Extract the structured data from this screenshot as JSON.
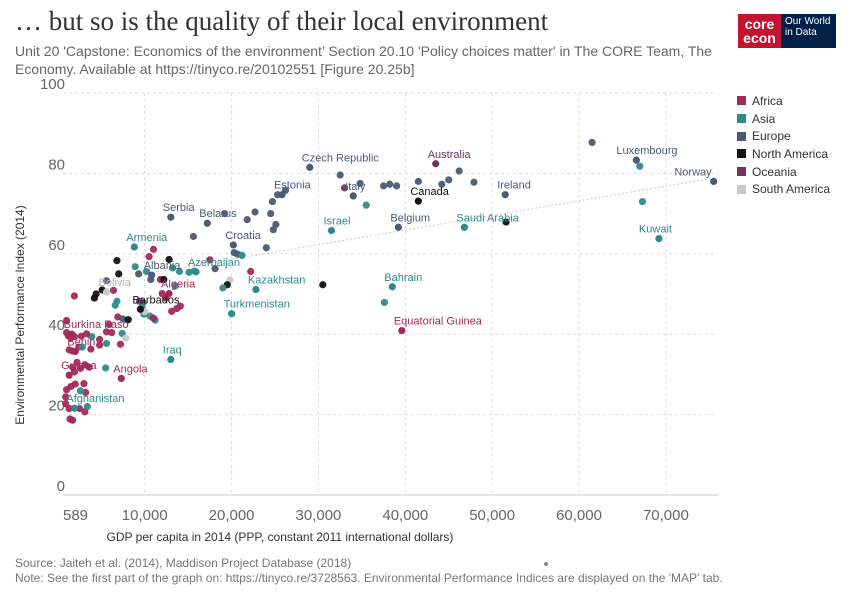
{
  "header": {
    "title": "… but so is the quality of their local environment",
    "subtitle": "Unit 20 'Capstone: Economics of the environment’ Section 20.10 'Policy choices matter' in The CORE Team, The Economy. Available at https://tinyco.re/20102551 [Figure 20.25b]"
  },
  "logos": {
    "core_top": "core",
    "core_bottom": "econ",
    "owid_1": "Our World",
    "owid_2": "in Data"
  },
  "footer": {
    "source": "Source: Jaiteh et al. (2014), Maddison Project Database (2018)",
    "note": "Note: See the first part of the graph on: https://tinyco.re/3728563. Environmental Performance Indices are displayed on the 'MAP' tab."
  },
  "colors": {
    "Africa": "#a2295c",
    "Asia": "#2f8b89",
    "Europe": "#4d5a75",
    "North America": "#111111",
    "Oceania": "#72335f",
    "South America": "#c8c8c8"
  },
  "chart_data": {
    "type": "scatter",
    "xlabel": "GDP per capita in 2014 (PPP, constant 2011 international dollars)",
    "ylabel": "Environmental Performance Index (2014)",
    "xlim": [
      589,
      76000
    ],
    "ylim": [
      0,
      100
    ],
    "x_ticks": [
      589,
      10000,
      20000,
      30000,
      40000,
      50000,
      60000,
      70000
    ],
    "x_tick_labels": [
      "589",
      "10,000",
      "20,000",
      "30,000",
      "40,000",
      "50,000",
      "60,000",
      "70,000"
    ],
    "y_ticks": [
      0,
      20,
      40,
      60,
      80,
      100
    ],
    "y_tick_labels": [
      "0",
      "20",
      "40",
      "60",
      "80",
      "100"
    ],
    "grid": true,
    "legend_position": "right",
    "legend": [
      "Africa",
      "Asia",
      "Europe",
      "North America",
      "Oceania",
      "South America"
    ],
    "trend_line": [
      [
        10000,
        55
      ],
      [
        76000,
        79
      ]
    ],
    "labeled_points": [
      {
        "label": "Czech Republic",
        "x": 29000,
        "y": 81.5,
        "region": "Europe"
      },
      {
        "label": "Australia",
        "x": 43500,
        "y": 82.4,
        "region": "Oceania"
      },
      {
        "label": "Luxembourg",
        "x": 66600,
        "y": 83.3,
        "region": "Europe"
      },
      {
        "label": "Norway",
        "x": 75500,
        "y": 78.0,
        "region": "Europe"
      },
      {
        "label": "Estonia",
        "x": 25800,
        "y": 74.7,
        "region": "Europe"
      },
      {
        "label": "Italy",
        "x": 34000,
        "y": 74.4,
        "region": "Europe"
      },
      {
        "label": "Ireland",
        "x": 51500,
        "y": 74.7,
        "region": "Europe"
      },
      {
        "label": "Canada",
        "x": 41500,
        "y": 73.1,
        "region": "North America"
      },
      {
        "label": "Serbia",
        "x": 13000,
        "y": 69.1,
        "region": "Europe"
      },
      {
        "label": "Belarus",
        "x": 17200,
        "y": 67.6,
        "region": "Europe"
      },
      {
        "label": "Israel",
        "x": 31500,
        "y": 65.8,
        "region": "Asia"
      },
      {
        "label": "Belgium",
        "x": 39200,
        "y": 66.6,
        "region": "Europe"
      },
      {
        "label": "Saudi Arabia",
        "x": 46800,
        "y": 66.6,
        "region": "Asia"
      },
      {
        "label": "Kuwait",
        "x": 69200,
        "y": 63.8,
        "region": "Asia"
      },
      {
        "label": "Croatia",
        "x": 20200,
        "y": 62.2,
        "region": "Europe"
      },
      {
        "label": "Armenia",
        "x": 8800,
        "y": 61.7,
        "region": "Asia"
      },
      {
        "label": "Albania",
        "x": 10800,
        "y": 54.7,
        "region": "Europe"
      },
      {
        "label": "Azerbaijan",
        "x": 15900,
        "y": 55.5,
        "region": "Asia"
      },
      {
        "label": "Bolivia",
        "x": 5600,
        "y": 50.5,
        "region": "South America"
      },
      {
        "label": "Algeria",
        "x": 12800,
        "y": 50.1,
        "region": "Africa"
      },
      {
        "label": "Kazakhstan",
        "x": 22800,
        "y": 51.1,
        "region": "Asia"
      },
      {
        "label": "Bahrain",
        "x": 38500,
        "y": 51.8,
        "region": "Asia"
      },
      {
        "label": "Barbados",
        "x": 9500,
        "y": 46.2,
        "region": "North America"
      },
      {
        "label": "Turkmenistan",
        "x": 20000,
        "y": 45.1,
        "region": "Asia"
      },
      {
        "label": "Equatorial Guinea",
        "x": 39600,
        "y": 40.9,
        "region": "Africa"
      },
      {
        "label": "Burkina Faso",
        "x": 1600,
        "y": 40.0,
        "region": "Africa"
      },
      {
        "label": "Benin",
        "x": 2000,
        "y": 35.7,
        "region": "Africa"
      },
      {
        "label": "Iraq",
        "x": 13000,
        "y": 33.7,
        "region": "Asia"
      },
      {
        "label": "Angola",
        "x": 7300,
        "y": 29.0,
        "region": "Africa"
      },
      {
        "label": "Guinea",
        "x": 1300,
        "y": 29.8,
        "region": "Africa"
      },
      {
        "label": "Afghanistan",
        "x": 1900,
        "y": 21.6,
        "region": "Asia"
      }
    ],
    "points": [
      {
        "x": 61500,
        "y": 87.7,
        "region": "Europe"
      },
      {
        "x": 67000,
        "y": 81.8,
        "region": "Asia"
      },
      {
        "x": 67300,
        "y": 73.0,
        "region": "Asia"
      },
      {
        "x": 32500,
        "y": 79.6,
        "region": "Europe"
      },
      {
        "x": 33000,
        "y": 76.4,
        "region": "Oceania"
      },
      {
        "x": 34800,
        "y": 77.5,
        "region": "Europe"
      },
      {
        "x": 35500,
        "y": 72.1,
        "region": "Asia"
      },
      {
        "x": 37500,
        "y": 76.9,
        "region": "Europe"
      },
      {
        "x": 38200,
        "y": 77.3,
        "region": "Europe"
      },
      {
        "x": 39000,
        "y": 76.9,
        "region": "Europe"
      },
      {
        "x": 41500,
        "y": 78.0,
        "region": "Europe"
      },
      {
        "x": 44200,
        "y": 77.3,
        "region": "Europe"
      },
      {
        "x": 45000,
        "y": 78.4,
        "region": "Europe"
      },
      {
        "x": 46200,
        "y": 80.6,
        "region": "Europe"
      },
      {
        "x": 47900,
        "y": 77.8,
        "region": "Europe"
      },
      {
        "x": 51600,
        "y": 67.9,
        "region": "North America"
      },
      {
        "x": 26200,
        "y": 75.8,
        "region": "Europe"
      },
      {
        "x": 24700,
        "y": 73.0,
        "region": "Europe"
      },
      {
        "x": 25300,
        "y": 74.7,
        "region": "Europe"
      },
      {
        "x": 24500,
        "y": 70.0,
        "region": "Europe"
      },
      {
        "x": 22700,
        "y": 70.4,
        "region": "Europe"
      },
      {
        "x": 21800,
        "y": 68.5,
        "region": "Europe"
      },
      {
        "x": 19200,
        "y": 70.0,
        "region": "Europe"
      },
      {
        "x": 25100,
        "y": 67.3,
        "region": "Europe"
      },
      {
        "x": 24800,
        "y": 66.0,
        "region": "Europe"
      },
      {
        "x": 20300,
        "y": 60.3,
        "region": "Europe"
      },
      {
        "x": 24000,
        "y": 61.5,
        "region": "Europe"
      },
      {
        "x": 15600,
        "y": 64.3,
        "region": "Europe"
      },
      {
        "x": 20700,
        "y": 59.9,
        "region": "Europe"
      },
      {
        "x": 21200,
        "y": 59.6,
        "region": "Asia"
      },
      {
        "x": 22200,
        "y": 55.6,
        "region": "Africa"
      },
      {
        "x": 18100,
        "y": 56.3,
        "region": "Europe"
      },
      {
        "x": 17500,
        "y": 58.5,
        "region": "Africa"
      },
      {
        "x": 11000,
        "y": 61.1,
        "region": "Africa"
      },
      {
        "x": 10500,
        "y": 59.3,
        "region": "Africa"
      },
      {
        "x": 8900,
        "y": 56.8,
        "region": "Asia"
      },
      {
        "x": 6800,
        "y": 58.3,
        "region": "North America"
      },
      {
        "x": 7000,
        "y": 55.0,
        "region": "North America"
      },
      {
        "x": 9300,
        "y": 55.0,
        "region": "Europe"
      },
      {
        "x": 10200,
        "y": 55.6,
        "region": "Asia"
      },
      {
        "x": 10700,
        "y": 53.6,
        "region": "Europe"
      },
      {
        "x": 11800,
        "y": 53.6,
        "region": "Africa"
      },
      {
        "x": 12200,
        "y": 53.6,
        "region": "North America"
      },
      {
        "x": 12800,
        "y": 58.6,
        "region": "North America"
      },
      {
        "x": 13200,
        "y": 56.5,
        "region": "Asia"
      },
      {
        "x": 14000,
        "y": 55.6,
        "region": "Asia"
      },
      {
        "x": 15100,
        "y": 55.4,
        "region": "Asia"
      },
      {
        "x": 15700,
        "y": 55.7,
        "region": "Asia"
      },
      {
        "x": 19800,
        "y": 53.5,
        "region": "South America"
      },
      {
        "x": 19500,
        "y": 52.3,
        "region": "North America"
      },
      {
        "x": 19000,
        "y": 51.5,
        "region": "Asia"
      },
      {
        "x": 13500,
        "y": 52.0,
        "region": "Asia"
      },
      {
        "x": 12400,
        "y": 49.0,
        "region": "Africa"
      },
      {
        "x": 12000,
        "y": 50.1,
        "region": "Africa"
      },
      {
        "x": 30500,
        "y": 52.3,
        "region": "North America"
      },
      {
        "x": 37600,
        "y": 47.9,
        "region": "Asia"
      },
      {
        "x": 9400,
        "y": 48.2,
        "region": "Africa"
      },
      {
        "x": 9800,
        "y": 47.9,
        "region": "Europe"
      },
      {
        "x": 9700,
        "y": 46.8,
        "region": "Asia"
      },
      {
        "x": 9900,
        "y": 45.0,
        "region": "Asia"
      },
      {
        "x": 10000,
        "y": 45.6,
        "region": "South America"
      },
      {
        "x": 10600,
        "y": 44.5,
        "region": "Asia"
      },
      {
        "x": 11200,
        "y": 43.5,
        "region": "Asia"
      },
      {
        "x": 11000,
        "y": 44.0,
        "region": "Africa"
      },
      {
        "x": 13700,
        "y": 46.4,
        "region": "Africa"
      },
      {
        "x": 14100,
        "y": 47.0,
        "region": "Africa"
      },
      {
        "x": 13100,
        "y": 45.7,
        "region": "Africa"
      },
      {
        "x": 4400,
        "y": 50.0,
        "region": "North America"
      },
      {
        "x": 4200,
        "y": 49.0,
        "region": "North America"
      },
      {
        "x": 5100,
        "y": 51.0,
        "region": "North America"
      },
      {
        "x": 5600,
        "y": 53.3,
        "region": "Europe"
      },
      {
        "x": 6400,
        "y": 50.9,
        "region": "Africa"
      },
      {
        "x": 6800,
        "y": 48.2,
        "region": "Asia"
      },
      {
        "x": 6600,
        "y": 47.2,
        "region": "Asia"
      },
      {
        "x": 6900,
        "y": 44.3,
        "region": "Africa"
      },
      {
        "x": 7500,
        "y": 43.8,
        "region": "Europe"
      },
      {
        "x": 7400,
        "y": 40.2,
        "region": "Asia"
      },
      {
        "x": 8100,
        "y": 43.6,
        "region": "North America"
      },
      {
        "x": 5900,
        "y": 42.4,
        "region": "Africa"
      },
      {
        "x": 6200,
        "y": 40.4,
        "region": "Africa"
      },
      {
        "x": 5600,
        "y": 40.6,
        "region": "Africa"
      },
      {
        "x": 4800,
        "y": 38.7,
        "region": "Africa"
      },
      {
        "x": 3900,
        "y": 39.4,
        "region": "Asia"
      },
      {
        "x": 3300,
        "y": 40.1,
        "region": "Africa"
      },
      {
        "x": 1900,
        "y": 49.5,
        "region": "Africa"
      },
      {
        "x": 1000,
        "y": 43.4,
        "region": "Africa"
      },
      {
        "x": 1000,
        "y": 40.4,
        "region": "Africa"
      },
      {
        "x": 1200,
        "y": 39.6,
        "region": "Africa"
      },
      {
        "x": 1500,
        "y": 39.1,
        "region": "Africa"
      },
      {
        "x": 1900,
        "y": 39.4,
        "region": "Africa"
      },
      {
        "x": 2700,
        "y": 39.5,
        "region": "Africa"
      },
      {
        "x": 1300,
        "y": 36.1,
        "region": "Africa"
      },
      {
        "x": 1700,
        "y": 35.8,
        "region": "Africa"
      },
      {
        "x": 2400,
        "y": 36.8,
        "region": "Africa"
      },
      {
        "x": 2800,
        "y": 36.8,
        "region": "Asia"
      },
      {
        "x": 3800,
        "y": 36.3,
        "region": "Africa"
      },
      {
        "x": 4800,
        "y": 37.3,
        "region": "Africa"
      },
      {
        "x": 5600,
        "y": 37.7,
        "region": "Asia"
      },
      {
        "x": 7200,
        "y": 37.5,
        "region": "Africa"
      },
      {
        "x": 7800,
        "y": 39.0,
        "region": "South America"
      },
      {
        "x": 2200,
        "y": 33.0,
        "region": "Africa"
      },
      {
        "x": 1700,
        "y": 31.8,
        "region": "Africa"
      },
      {
        "x": 1900,
        "y": 30.6,
        "region": "Africa"
      },
      {
        "x": 2600,
        "y": 31.5,
        "region": "Africa"
      },
      {
        "x": 3100,
        "y": 32.4,
        "region": "Africa"
      },
      {
        "x": 3600,
        "y": 31.8,
        "region": "Africa"
      },
      {
        "x": 5500,
        "y": 31.6,
        "region": "Asia"
      },
      {
        "x": 1500,
        "y": 27.0,
        "region": "Africa"
      },
      {
        "x": 2000,
        "y": 27.6,
        "region": "Africa"
      },
      {
        "x": 3000,
        "y": 27.7,
        "region": "Africa"
      },
      {
        "x": 3200,
        "y": 25.5,
        "region": "Africa"
      },
      {
        "x": 1000,
        "y": 26.2,
        "region": "Africa"
      },
      {
        "x": 900,
        "y": 24.4,
        "region": "Africa"
      },
      {
        "x": 900,
        "y": 22.7,
        "region": "Africa"
      },
      {
        "x": 1300,
        "y": 21.5,
        "region": "Africa"
      },
      {
        "x": 2500,
        "y": 21.5,
        "region": "Africa"
      },
      {
        "x": 3100,
        "y": 20.7,
        "region": "Africa"
      },
      {
        "x": 2600,
        "y": 25.9,
        "region": "Asia"
      },
      {
        "x": 1400,
        "y": 18.9,
        "region": "Africa"
      },
      {
        "x": 1700,
        "y": 18.6,
        "region": "Africa"
      },
      {
        "x": 3400,
        "y": 22.0,
        "region": "Asia"
      }
    ]
  }
}
